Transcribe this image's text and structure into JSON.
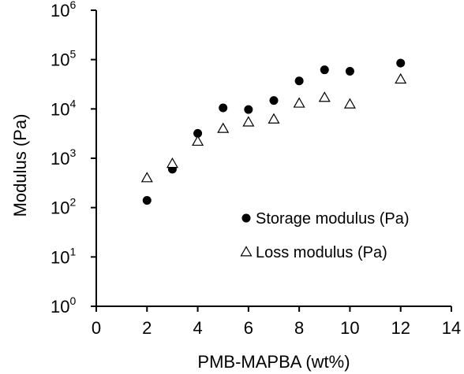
{
  "chart_data": {
    "type": "scatter",
    "xlabel": "PMB-MAPBA (wt%)",
    "ylabel": "Modulus (Pa)",
    "xlim": [
      0,
      14
    ],
    "ylim": [
      1,
      1000000
    ],
    "yscale": "log",
    "xticks": [
      0,
      2,
      4,
      6,
      8,
      10,
      12,
      14
    ],
    "yticks": [
      {
        "base": "10",
        "exp": "0"
      },
      {
        "base": "10",
        "exp": "1"
      },
      {
        "base": "10",
        "exp": "2"
      },
      {
        "base": "10",
        "exp": "3"
      },
      {
        "base": "10",
        "exp": "4"
      },
      {
        "base": "10",
        "exp": "5"
      },
      {
        "base": "10",
        "exp": "6"
      }
    ],
    "grid": false,
    "legend_position": "lower-right",
    "series": [
      {
        "name": "Storage modulus (Pa)",
        "marker": "filled-circle",
        "color": "#000000",
        "x": [
          2,
          3,
          4,
          5,
          6,
          7,
          8,
          9,
          10,
          12
        ],
        "y": [
          140,
          600,
          3200,
          10500,
          9700,
          14800,
          37000,
          62000,
          58000,
          85000
        ]
      },
      {
        "name": "Loss modulus (Pa)",
        "marker": "open-triangle",
        "color": "#000000",
        "x": [
          2,
          3,
          4,
          5,
          6,
          7,
          8,
          9,
          10,
          12
        ],
        "y": [
          400,
          780,
          2200,
          4000,
          5400,
          6200,
          13000,
          17000,
          12500,
          40000
        ]
      }
    ]
  }
}
